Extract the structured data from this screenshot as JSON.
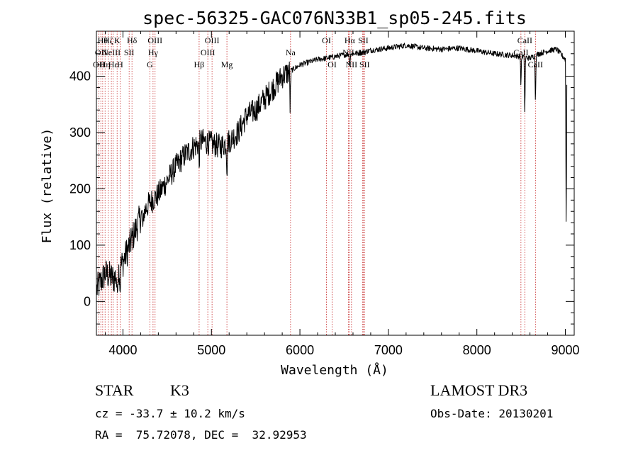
{
  "chart_data": {
    "type": "line",
    "title": "spec-56325-GAC076N33B1_sp05-245.fits",
    "xlabel": "Wavelength (Å)",
    "ylabel": "Flux (relative)",
    "xlim": [
      3700,
      9100
    ],
    "ylim": [
      -60,
      480
    ],
    "xticks": [
      4000,
      5000,
      6000,
      7000,
      8000,
      9000
    ],
    "xtick_labels": [
      "4000",
      "5000",
      "6000",
      "7000",
      "8000",
      "9000"
    ],
    "yticks": [
      0,
      100,
      200,
      300,
      400
    ],
    "ytick_labels": [
      "0",
      "100",
      "200",
      "300",
      "400"
    ],
    "grid": false,
    "series": [
      {
        "name": "spectrum",
        "color": "#000000",
        "x": [
          3700,
          3800,
          3900,
          4000,
          4100,
          4200,
          4300,
          4400,
          4500,
          4600,
          4700,
          4800,
          4900,
          5000,
          5100,
          5200,
          5300,
          5400,
          5500,
          5600,
          5700,
          5800,
          5900,
          6000,
          6100,
          6200,
          6300,
          6400,
          6500,
          6600,
          6700,
          6800,
          6900,
          7000,
          7200,
          7400,
          7600,
          7800,
          8000,
          8200,
          8400,
          8500,
          8600,
          8700,
          8800,
          8900,
          9000
        ],
        "y": [
          20,
          50,
          40,
          70,
          110,
          150,
          175,
          190,
          215,
          240,
          260,
          275,
          285,
          280,
          275,
          285,
          300,
          330,
          340,
          360,
          380,
          400,
          410,
          420,
          425,
          430,
          432,
          435,
          438,
          440,
          442,
          446,
          448,
          450,
          455,
          450,
          448,
          450,
          445,
          440,
          437,
          435,
          432,
          440,
          445,
          448,
          430
        ]
      }
    ],
    "absorption_features": [
      {
        "x": 3934,
        "depth": 50
      },
      {
        "x": 3968,
        "depth": 45
      },
      {
        "x": 4227,
        "depth": 40
      },
      {
        "x": 4861,
        "depth": 40
      },
      {
        "x": 5175,
        "depth": 55
      },
      {
        "x": 5890,
        "depth": 70
      },
      {
        "x": 6563,
        "depth": 25
      },
      {
        "x": 8498,
        "depth": 55
      },
      {
        "x": 8542,
        "depth": 110
      },
      {
        "x": 8662,
        "depth": 90
      },
      {
        "x": 9010,
        "depth": 330
      }
    ],
    "line_markers": [
      {
        "x": 3727,
        "label": "OII",
        "row": 2
      },
      {
        "x": 3750,
        "label": "OII",
        "row": 1
      },
      {
        "x": 3771,
        "label": "Hθ",
        "row": 0
      },
      {
        "x": 3798,
        "label": "Hη",
        "row": 2
      },
      {
        "x": 3835,
        "label": "Hζ",
        "row": 0
      },
      {
        "x": 3869,
        "label": "NeIII",
        "row": 1
      },
      {
        "x": 3889,
        "label": "Hε",
        "row": 2
      },
      {
        "x": 3934,
        "label": "K",
        "row": 0
      },
      {
        "x": 3968,
        "label": "H",
        "row": 2
      },
      {
        "x": 4070,
        "label": "SII",
        "row": 1
      },
      {
        "x": 4102,
        "label": "Hδ",
        "row": 0
      },
      {
        "x": 4304,
        "label": "G",
        "row": 2
      },
      {
        "x": 4340,
        "label": "Hγ",
        "row": 1
      },
      {
        "x": 4363,
        "label": "OIII",
        "row": 0
      },
      {
        "x": 4861,
        "label": "Hβ",
        "row": 2
      },
      {
        "x": 4959,
        "label": "OIII",
        "row": 1
      },
      {
        "x": 5007,
        "label": "OIII",
        "row": 0
      },
      {
        "x": 5175,
        "label": "Mg",
        "row": 2
      },
      {
        "x": 5894,
        "label": "Na",
        "row": 1
      },
      {
        "x": 6300,
        "label": "OI",
        "row": 0
      },
      {
        "x": 6364,
        "label": "OI",
        "row": 2
      },
      {
        "x": 6548,
        "label": "NII",
        "row": 1
      },
      {
        "x": 6563,
        "label": "Hα",
        "row": 0
      },
      {
        "x": 6583,
        "label": "NII",
        "row": 2
      },
      {
        "x": 6707,
        "label": "Li",
        "row": 1
      },
      {
        "x": 6716,
        "label": "SII",
        "row": 0
      },
      {
        "x": 6731,
        "label": "SII",
        "row": 2
      },
      {
        "x": 8498,
        "label": "CaII",
        "row": 1
      },
      {
        "x": 8542,
        "label": "CaII",
        "row": 0
      },
      {
        "x": 8662,
        "label": "CaII",
        "row": 2
      }
    ]
  },
  "info": {
    "object_class": "STAR",
    "subclass": "K3",
    "survey": "LAMOST DR3",
    "redshift": "cz = -33.7 ± 10.2 km/s",
    "obs_date": "Obs-Date: 20130201",
    "coords": "RA =  75.72078, DEC =  32.92953"
  }
}
